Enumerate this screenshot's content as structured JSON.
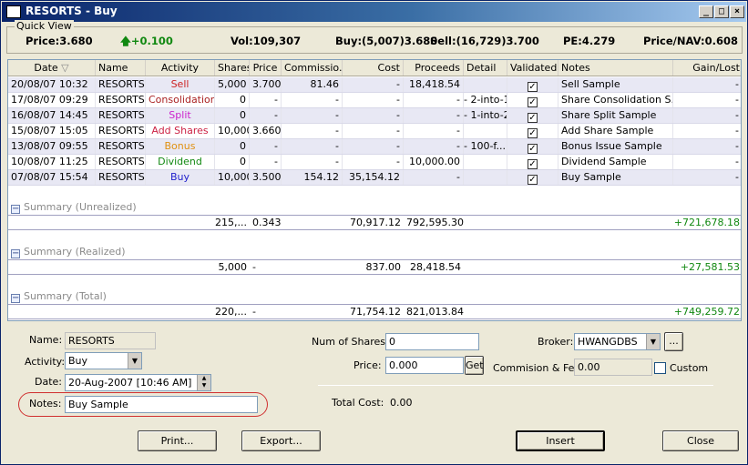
{
  "window": {
    "title": "RESORTS - Buy",
    "minimize": "_",
    "maximize": "□",
    "close": "×"
  },
  "quick_view": {
    "title": "Quick View",
    "price": "Price:3.680",
    "change": "+0.100",
    "vol": "Vol:109,307",
    "buy": "Buy:(5,007)3.680",
    "sell": "Sell:(16,729)3.700",
    "pe": "PE:4.279",
    "price_nav": "Price/NAV:0.608"
  },
  "grid": {
    "columns": [
      "Date",
      "Name",
      "Activity",
      "Shares",
      "Price",
      "Commissio...",
      "Cost",
      "Proceeds",
      "Detail",
      "Validated",
      "Notes",
      "Gain/Lost"
    ],
    "rows": [
      {
        "date": "20/08/07 10:32",
        "name": "RESORTS",
        "activity": "Sell",
        "activity_color": "#cc2222",
        "shares": "5,000",
        "price": "3.700",
        "commission": "81.46",
        "cost": "-",
        "proceeds": "18,418.54",
        "detail": "",
        "validated": "✓",
        "notes": "Sell Sample",
        "gain": "-"
      },
      {
        "date": "17/08/07 09:29",
        "name": "RESORTS",
        "activity": "Consolidation",
        "activity_color": "#aa2222",
        "shares": "0",
        "price": "-",
        "commission": "-",
        "cost": "-",
        "proceeds": "-",
        "detail": "2-into-1",
        "validated": "✓",
        "notes": "Share Consolidation S...",
        "gain": "-"
      },
      {
        "date": "16/08/07 14:45",
        "name": "RESORTS",
        "activity": "Split",
        "activity_color": "#cc22cc",
        "shares": "0",
        "price": "-",
        "commission": "-",
        "cost": "-",
        "proceeds": "-",
        "detail": "1-into-2",
        "validated": "✓",
        "notes": "Share Split Sample",
        "gain": "-"
      },
      {
        "date": "15/08/07 15:05",
        "name": "RESORTS",
        "activity": "Add Shares",
        "activity_color": "#cc2244",
        "shares": "10,000",
        "price": "3.660",
        "commission": "-",
        "cost": "-",
        "proceeds": "-",
        "detail": "",
        "validated": "✓",
        "notes": "Add Share Sample",
        "gain": "-"
      },
      {
        "date": "13/08/07 09:55",
        "name": "RESORTS",
        "activity": "Bonus",
        "activity_color": "#e09010",
        "shares": "0",
        "price": "-",
        "commission": "-",
        "cost": "-",
        "proceeds": "-",
        "detail": "100-f...",
        "validated": "✓",
        "notes": "Bonus Issue Sample",
        "gain": "-"
      },
      {
        "date": "10/08/07 11:25",
        "name": "RESORTS",
        "activity": "Dividend",
        "activity_color": "#118811",
        "shares": "0",
        "price": "-",
        "commission": "-",
        "cost": "-",
        "proceeds": "10,000.00",
        "detail": "",
        "validated": "✓",
        "notes": "Dividend Sample",
        "gain": "-"
      },
      {
        "date": "07/08/07 15:54",
        "name": "RESORTS",
        "activity": "Buy",
        "activity_color": "#2222cc",
        "shares": "10,000",
        "price": "3.500",
        "commission": "154.12",
        "cost": "35,154.12",
        "proceeds": "-",
        "detail": "",
        "validated": "✓",
        "notes": "Buy Sample",
        "gain": "-"
      }
    ],
    "groups": [
      {
        "label": "Summary (Unrealized)",
        "shares": "215,...",
        "price": "0.343",
        "cost": "70,917.12",
        "proceeds": "792,595.30",
        "gain": "+721,678.18"
      },
      {
        "label": "Summary (Realized)",
        "shares": "5,000",
        "price": "-",
        "cost": "837.00",
        "proceeds": "28,418.54",
        "gain": "+27,581.53"
      },
      {
        "label": "Summary (Total)",
        "shares": "220,...",
        "price": "-",
        "cost": "71,754.12",
        "proceeds": "821,013.84",
        "gain": "+749,259.72"
      }
    ]
  },
  "form": {
    "name_label": "Name:",
    "name_value": "RESORTS",
    "activity_label": "Activity:",
    "activity_value": "Buy",
    "date_label": "Date:",
    "date_value": "20-Aug-2007 [10:46 AM]",
    "notes_label": "Notes:",
    "notes_value": "Buy Sample",
    "num_shares_label": "Num of Shares:",
    "num_shares_value": "0",
    "price_label": "Price:",
    "price_value": "0.000",
    "get_label": "Get",
    "total_cost_label": "Total Cost:",
    "total_cost_value": "0.00",
    "broker_label": "Broker:",
    "broker_value": "HWANGDBS",
    "broker_more": "...",
    "commission_label": "Commision & Fee:",
    "commission_value": "0.00",
    "custom_label": "Custom"
  },
  "buttons": {
    "print": "Print...",
    "export": "Export...",
    "insert": "Insert",
    "close": "Close"
  }
}
